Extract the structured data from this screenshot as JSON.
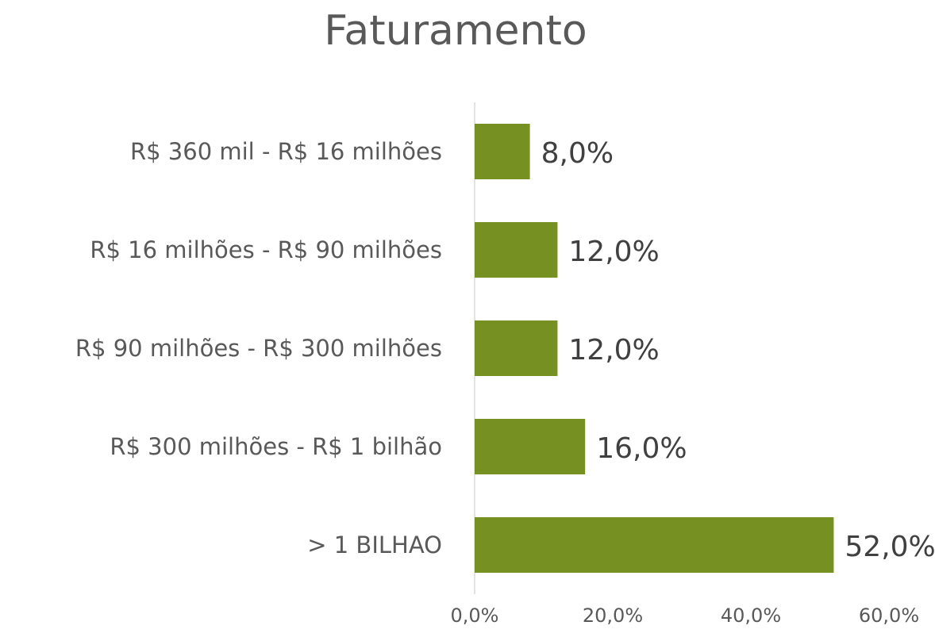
{
  "chart_data": {
    "type": "barh",
    "title": "Faturamento",
    "categories": [
      "R$ 360 mil - R$ 16 milhões",
      "R$ 16 milhões - R$ 90 milhões",
      "R$ 90 milhões - R$ 300 milhões",
      "R$ 300 milhões -  R$ 1 bilhão",
      "> 1 BILHAO"
    ],
    "values": [
      8,
      12,
      12,
      16,
      52
    ],
    "value_labels": [
      "8,0%",
      "12,0%",
      "12,0%",
      "16,0%",
      "52,0%"
    ],
    "color": "#769022",
    "xlim": [
      0,
      60
    ],
    "xticks": [
      {
        "value": 0,
        "label": "0,0%"
      },
      {
        "value": 20,
        "label": "20,0%"
      },
      {
        "value": 40,
        "label": "40,0%"
      },
      {
        "value": 60,
        "label": "60,0%"
      }
    ],
    "grid": false
  }
}
